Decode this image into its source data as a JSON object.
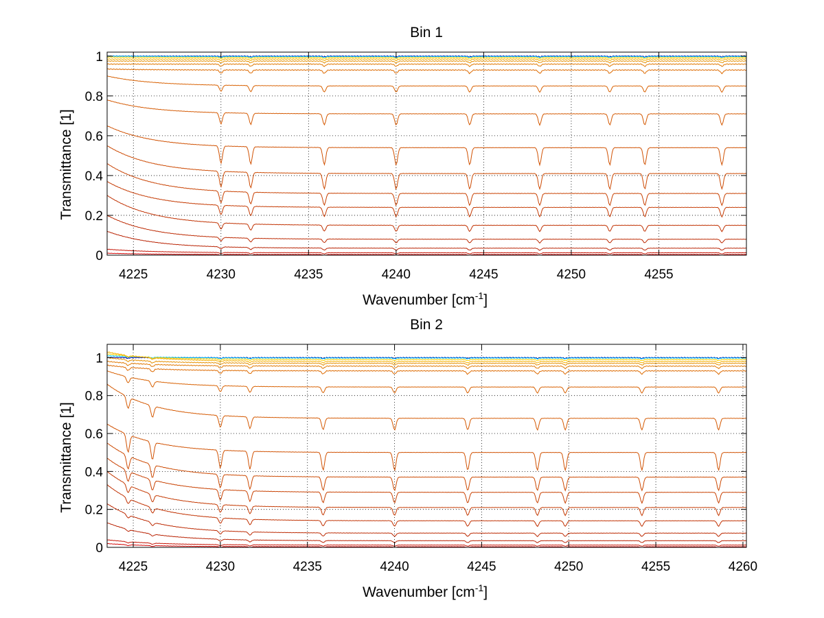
{
  "chart_data": [
    {
      "type": "line",
      "title": "Bin 1",
      "xlabel": "Wavenumber [cm",
      "xlabel_sup": "-1",
      "xlabel_end": "]",
      "ylabel": "Transmittance [1]",
      "xlim": [
        4223.5,
        4260
      ],
      "ylim": [
        0,
        1.02
      ],
      "xticks": [
        4225,
        4230,
        4235,
        4240,
        4245,
        4250,
        4255
      ],
      "xtick_labels": [
        "4225",
        "4230",
        "4235",
        "4240",
        "4245",
        "4250",
        "4255"
      ],
      "yticks": [
        0,
        0.2,
        0.4,
        0.6,
        0.8,
        1
      ],
      "ytick_labels": [
        "0",
        "0.2",
        "0.4",
        "0.6",
        "0.8",
        "1"
      ],
      "grid": true,
      "absorption_lines": [
        4230.0,
        4231.7,
        4235.9,
        4240.0,
        4244.2,
        4248.2,
        4252.2,
        4254.2,
        4258.6
      ],
      "series": [
        {
          "color": "#0000aa",
          "start": 1.0,
          "plateau": 1.0
        },
        {
          "color": "#00c8ff",
          "start": 1.0,
          "plateau": 0.998
        },
        {
          "color": "#ffd200",
          "start": 0.995,
          "plateau": 0.993
        },
        {
          "color": "#f5b000",
          "start": 0.985,
          "plateau": 0.985
        },
        {
          "color": "#e69000",
          "start": 0.975,
          "plateau": 0.975
        },
        {
          "color": "#e07800",
          "start": 0.96,
          "plateau": 0.96
        },
        {
          "color": "#dd6a00",
          "start": 0.935,
          "plateau": 0.93
        },
        {
          "color": "#d86000",
          "start": 0.9,
          "plateau": 0.85
        },
        {
          "color": "#d45800",
          "start": 0.78,
          "plateau": 0.71
        },
        {
          "color": "#d05000",
          "start": 0.65,
          "plateau": 0.54
        },
        {
          "color": "#cc4800",
          "start": 0.55,
          "plateau": 0.41
        },
        {
          "color": "#c84000",
          "start": 0.46,
          "plateau": 0.31
        },
        {
          "color": "#c43800",
          "start": 0.37,
          "plateau": 0.24
        },
        {
          "color": "#c03000",
          "start": 0.3,
          "plateau": 0.15
        },
        {
          "color": "#bc2800",
          "start": 0.2,
          "plateau": 0.08
        },
        {
          "color": "#b82000",
          "start": 0.12,
          "plateau": 0.035
        },
        {
          "color": "#c41000",
          "start": 0.03,
          "plateau": 0.012
        },
        {
          "color": "#d00000",
          "start": 0.01,
          "plateau": 0.003
        }
      ]
    },
    {
      "type": "line",
      "title": "Bin 2",
      "xlabel": "Wavenumber [cm",
      "xlabel_sup": "-1",
      "xlabel_end": "]",
      "ylabel": "Transmittance [1]",
      "xlim": [
        4223.5,
        4260.2
      ],
      "ylim": [
        0,
        1.07
      ],
      "xticks": [
        4225,
        4230,
        4235,
        4240,
        4245,
        4250,
        4255,
        4260
      ],
      "xtick_labels": [
        "4225",
        "4230",
        "4235",
        "4240",
        "4245",
        "4250",
        "4255",
        "4260"
      ],
      "yticks": [
        0,
        0.2,
        0.4,
        0.6,
        0.8,
        1
      ],
      "ytick_labels": [
        "0",
        "0.2",
        "0.4",
        "0.6",
        "0.8",
        "1"
      ],
      "grid": true,
      "absorption_lines": [
        4224.7,
        4226.1,
        4230.0,
        4231.7,
        4235.9,
        4240.0,
        4244.2,
        4248.2,
        4249.8,
        4254.2,
        4258.6
      ],
      "series": [
        {
          "color": "#0000aa",
          "start": 1.0,
          "plateau": 1.0
        },
        {
          "color": "#00c8ff",
          "start": 1.01,
          "plateau": 0.998
        },
        {
          "color": "#ffd200",
          "start": 1.02,
          "plateau": 0.99
        },
        {
          "color": "#f5b000",
          "start": 1.03,
          "plateau": 0.98
        },
        {
          "color": "#e69000",
          "start": 1.0,
          "plateau": 0.97
        },
        {
          "color": "#e07800",
          "start": 0.98,
          "plateau": 0.955
        },
        {
          "color": "#dd6a00",
          "start": 0.96,
          "plateau": 0.93
        },
        {
          "color": "#d86000",
          "start": 0.93,
          "plateau": 0.845
        },
        {
          "color": "#d45800",
          "start": 0.86,
          "plateau": 0.68
        },
        {
          "color": "#d05000",
          "start": 0.65,
          "plateau": 0.5
        },
        {
          "color": "#cc4800",
          "start": 0.55,
          "plateau": 0.37
        },
        {
          "color": "#c84000",
          "start": 0.47,
          "plateau": 0.29
        },
        {
          "color": "#c43800",
          "start": 0.4,
          "plateau": 0.21
        },
        {
          "color": "#c03000",
          "start": 0.33,
          "plateau": 0.14
        },
        {
          "color": "#bc2800",
          "start": 0.23,
          "plateau": 0.075
        },
        {
          "color": "#b82000",
          "start": 0.13,
          "plateau": 0.035
        },
        {
          "color": "#c41000",
          "start": 0.04,
          "plateau": 0.012
        },
        {
          "color": "#d00000",
          "start": 0.02,
          "plateau": 0.003
        }
      ]
    }
  ]
}
